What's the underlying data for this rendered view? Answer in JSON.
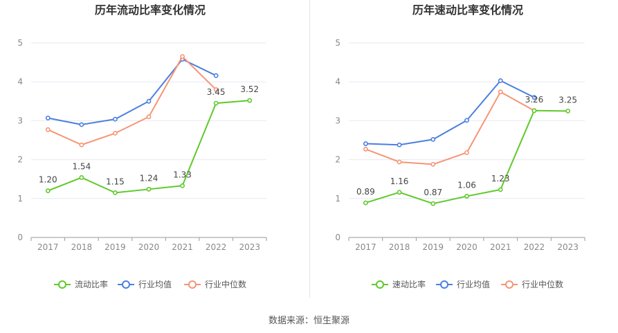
{
  "source_note": "数据来源：恒生聚源",
  "colors": {
    "company": "#5ec92a",
    "industry_avg": "#4a7fe0",
    "industry_median": "#f59575",
    "grid": "#e6e9f2",
    "axis": "#999999",
    "tick_text": "#888888",
    "title": "#333333"
  },
  "chart_data": [
    {
      "type": "line",
      "title": "历年流动比率变化情况",
      "x": [
        "2017",
        "2018",
        "2019",
        "2020",
        "2021",
        "2022",
        "2023"
      ],
      "ylim": [
        0,
        5
      ],
      "yticks": [
        "0",
        "1",
        "2",
        "3",
        "4",
        "5"
      ],
      "grid": true,
      "legend_position": "bottom",
      "series": [
        {
          "name": "流动比率",
          "values": [
            1.2,
            1.54,
            1.15,
            1.24,
            1.33,
            3.45,
            3.52
          ],
          "labels": [
            "1.20",
            "1.54",
            "1.15",
            "1.24",
            "1.33",
            "3.45",
            "3.52"
          ]
        },
        {
          "name": "行业均值",
          "values": [
            3.07,
            2.9,
            3.04,
            3.5,
            4.58,
            4.16,
            null
          ]
        },
        {
          "name": "行业中位数",
          "values": [
            2.77,
            2.38,
            2.68,
            3.1,
            4.65,
            3.8,
            null
          ]
        }
      ]
    },
    {
      "type": "line",
      "title": "历年速动比率变化情况",
      "x": [
        "2017",
        "2018",
        "2019",
        "2020",
        "2021",
        "2022",
        "2023"
      ],
      "ylim": [
        0,
        5
      ],
      "yticks": [
        "0",
        "1",
        "2",
        "3",
        "4",
        "5"
      ],
      "grid": true,
      "legend_position": "bottom",
      "series": [
        {
          "name": "速动比率",
          "values": [
            0.89,
            1.16,
            0.87,
            1.06,
            1.23,
            3.26,
            3.25
          ],
          "labels": [
            "0.89",
            "1.16",
            "0.87",
            "1.06",
            "1.23",
            "3.26",
            "3.25"
          ]
        },
        {
          "name": "行业均值",
          "values": [
            2.41,
            2.38,
            2.52,
            3.01,
            4.03,
            3.6,
            null
          ]
        },
        {
          "name": "行业中位数",
          "values": [
            2.27,
            1.94,
            1.88,
            2.18,
            3.74,
            3.26,
            null
          ]
        }
      ]
    }
  ]
}
